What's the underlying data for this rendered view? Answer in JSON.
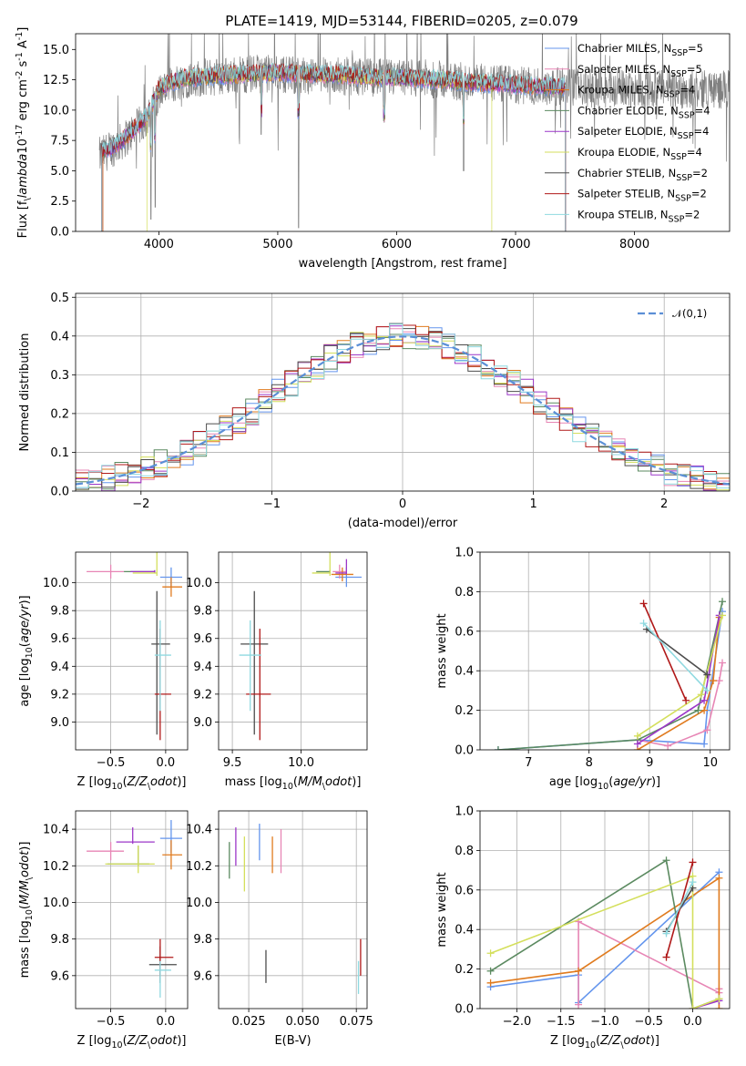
{
  "title": "PLATE=1419, MJD=53144, FIBERID=0205, z=0.079",
  "colors": {
    "chabrier_miles": "#6495ed",
    "salpeter_miles": "#e786b5",
    "kroupa_miles": "#e07b1f",
    "chabrier_elodie": "#5b8a60",
    "salpeter_elodie": "#9c36c8",
    "kroupa_elodie": "#d4df5c",
    "chabrier_stelib": "#4d4d4d",
    "salpeter_stelib": "#b01818",
    "kroupa_stelib": "#8fd9e0",
    "data": "#808080"
  },
  "chart_data": [
    {
      "id": "spectrum",
      "type": "line",
      "xlabel": "wavelength [Angstrom, rest frame]",
      "ylabel": "Flux [f$_\\lambda$10$^{-17}$ erg cm$^{-2}$ s$^{-1}$ A$^{-1}$]",
      "xlim": [
        3300,
        8800
      ],
      "ylim": [
        0,
        16.3
      ],
      "xticks": [
        4000,
        5000,
        6000,
        7000,
        8000
      ],
      "yticks": [
        0.0,
        2.5,
        5.0,
        7.5,
        10.0,
        12.5,
        15.0
      ],
      "legend_position": "right",
      "legend": [
        "Chabrier MILES, N$_{SSP}$=5",
        "Salpeter MILES, N$_{SSP}$=5",
        "Kroupa MILES, N$_{SSP}$=4",
        "Chabrier ELODIE, N$_{SSP}$=4",
        "Salpeter ELODIE, N$_{SSP}$=4",
        "Kroupa ELODIE, N$_{SSP}$=4",
        "Chabrier STELIB, N$_{SSP}$=2",
        "Salpeter STELIB, N$_{SSP}$=2",
        "Kroupa STELIB, N$_{SSP}$=2"
      ],
      "continuum_x": [
        3500,
        3600,
        3700,
        3800,
        3900,
        4000,
        4100,
        4200,
        4400,
        4600,
        4800,
        5000,
        5200,
        5400,
        5600,
        5800,
        6000,
        6200,
        6400,
        6600,
        6800,
        7000,
        7200,
        7400
      ],
      "continuum_y": [
        6.5,
        6.9,
        7.6,
        8.5,
        9.5,
        11.8,
        12.3,
        12.6,
        12.8,
        12.9,
        13.0,
        13.1,
        13.0,
        12.9,
        12.9,
        12.7,
        12.7,
        12.6,
        12.5,
        12.3,
        12.2,
        12.1,
        12.0,
        11.9
      ],
      "data_x": [
        3500,
        3600,
        3700,
        3800,
        3900,
        4000,
        4200,
        4500,
        4800,
        5000,
        5200,
        5400,
        5600,
        5800,
        6000,
        6200,
        6400,
        6600,
        6800,
        7000,
        7200,
        7400,
        7600,
        7800,
        8000,
        8200,
        8400,
        8600,
        8800
      ],
      "data_y": [
        6.2,
        6.8,
        7.5,
        8.4,
        9.3,
        11.5,
        12.5,
        12.8,
        13.0,
        13.0,
        12.9,
        12.8,
        12.8,
        12.7,
        12.6,
        12.6,
        12.5,
        12.3,
        12.2,
        12.0,
        12.0,
        11.9,
        11.8,
        11.8,
        11.8,
        11.8,
        11.7,
        11.7,
        11.7
      ],
      "absorption": [
        {
          "x": 3934,
          "y": 1.0
        },
        {
          "x": 3969,
          "y": 2.0
        },
        {
          "x": 4861,
          "y": 8.0
        },
        {
          "x": 5175,
          "y": 0.3
        },
        {
          "x": 5895,
          "y": 9.0
        },
        {
          "x": 6563,
          "y": 5.0
        }
      ]
    },
    {
      "id": "residuals",
      "type": "histogram",
      "xlabel": "(data-model)/error",
      "ylabel": "Normed distribution",
      "xlim": [
        -2.5,
        2.5
      ],
      "ylim": [
        0,
        0.51
      ],
      "xticks": [
        -2,
        -1,
        0,
        1,
        2
      ],
      "yticks": [
        0.0,
        0.1,
        0.2,
        0.3,
        0.4,
        0.5
      ],
      "bin_width": 0.1,
      "bin_start": -2.5,
      "n_bins": 50,
      "reference_label": "$\\mathcal{N}(0,1)$",
      "legend_position": "top-right"
    },
    {
      "id": "age-vs-Z",
      "type": "errorbar",
      "xlabel": "Z [log$_{10}$($Z/Z_\\odot$)]",
      "ylabel": "age  [log$_{10}$($age/yr$)]",
      "xlim": [
        -0.82,
        0.2
      ],
      "ylim": [
        8.8,
        10.22
      ],
      "xticks": [
        -0.5,
        0.0
      ],
      "yticks": [
        9.0,
        9.2,
        9.4,
        9.6,
        9.8,
        10.0
      ],
      "points": [
        {
          "s": "chabrier_miles",
          "x": 0.05,
          "y": 10.04,
          "xe": [
            0.1,
            0.1
          ],
          "ye": [
            0.07,
            0.07
          ]
        },
        {
          "s": "salpeter_miles",
          "x": -0.5,
          "y": 10.08,
          "xe": [
            0.22,
            0.12
          ],
          "ye": [
            0.05,
            0.05
          ]
        },
        {
          "s": "kroupa_miles",
          "x": 0.05,
          "y": 9.97,
          "xe": [
            0.08,
            0.1
          ],
          "ye": [
            0.07,
            0.07
          ]
        },
        {
          "s": "chabrier_elodie",
          "x": -0.1,
          "y": 10.08,
          "xe": [
            0.28,
            0.0
          ],
          "ye": [
            0.01,
            0.01
          ]
        },
        {
          "s": "salpeter_elodie",
          "x": -0.1,
          "y": 10.08,
          "xe": [
            0.22,
            0.0
          ],
          "ye": [
            0.01,
            0.01
          ]
        },
        {
          "s": "kroupa_elodie",
          "x": -0.08,
          "y": 10.07,
          "xe": [
            0.22,
            0.0
          ],
          "ye": [
            0.02,
            0.25
          ]
        },
        {
          "s": "chabrier_stelib",
          "x": -0.08,
          "y": 9.56,
          "xe": [
            0.05,
            0.12
          ],
          "ye": [
            0.65,
            0.38
          ]
        },
        {
          "s": "salpeter_stelib",
          "x": -0.05,
          "y": 9.2,
          "xe": [
            0.05,
            0.1
          ],
          "ye": [
            0.33,
            0.47
          ]
        },
        {
          "s": "kroupa_stelib",
          "x": -0.05,
          "y": 9.48,
          "xe": [
            0.05,
            0.1
          ],
          "ye": [
            0.4,
            0.25
          ]
        }
      ]
    },
    {
      "id": "age-vs-mass",
      "type": "errorbar",
      "xlabel": "mass [log$_{10}$($M/M_\\odot$)]",
      "ylabel": "",
      "xlim": [
        9.4,
        10.48
      ],
      "ylim": [
        8.8,
        10.22
      ],
      "xticks": [
        9.5,
        10.0
      ],
      "yticks": [
        9.0,
        9.2,
        9.4,
        9.6,
        9.8,
        10.0
      ],
      "points": [
        {
          "s": "chabrier_miles",
          "x": 10.33,
          "y": 10.04,
          "xe": [
            0.08,
            0.11
          ],
          "ye": [
            0.07,
            0.07
          ]
        },
        {
          "s": "salpeter_miles",
          "x": 10.28,
          "y": 10.08,
          "xe": [
            0.05,
            0.05
          ],
          "ye": [
            0.05,
            0.05
          ]
        },
        {
          "s": "kroupa_miles",
          "x": 10.3,
          "y": 10.06,
          "xe": [
            0.08,
            0.08
          ],
          "ye": [
            0.05,
            0.05
          ]
        },
        {
          "s": "chabrier_elodie",
          "x": 10.21,
          "y": 10.08,
          "xe": [
            0.1,
            0.0
          ],
          "ye": [
            0.01,
            0.01
          ]
        },
        {
          "s": "salpeter_elodie",
          "x": 10.33,
          "y": 10.07,
          "xe": [
            0.08,
            0.0
          ],
          "ye": [
            0.01,
            0.1
          ]
        },
        {
          "s": "kroupa_elodie",
          "x": 10.21,
          "y": 10.07,
          "xe": [
            0.13,
            0.0
          ],
          "ye": [
            0.02,
            0.25
          ]
        },
        {
          "s": "chabrier_stelib",
          "x": 9.66,
          "y": 9.56,
          "xe": [
            0.1,
            0.1
          ],
          "ye": [
            0.65,
            0.38
          ]
        },
        {
          "s": "salpeter_stelib",
          "x": 9.7,
          "y": 9.2,
          "xe": [
            0.1,
            0.08
          ],
          "ye": [
            0.33,
            0.47
          ]
        },
        {
          "s": "kroupa_stelib",
          "x": 9.63,
          "y": 9.48,
          "xe": [
            0.08,
            0.08
          ],
          "ye": [
            0.4,
            0.25
          ]
        }
      ]
    },
    {
      "id": "massweight-vs-age",
      "type": "line",
      "xlabel": "age  [log$_{10}$($age/yr$)]",
      "ylabel": "mass weight",
      "xlim": [
        6.2,
        10.32
      ],
      "ylim": [
        0.0,
        1.0
      ],
      "xticks": [
        7,
        8,
        9,
        10
      ],
      "yticks": [
        0.0,
        0.2,
        0.4,
        0.6,
        0.8,
        1.0
      ],
      "series": [
        {
          "s": "chabrier_miles",
          "x": [
            6.5,
            8.8,
            9.9,
            9.95,
            10.2
          ],
          "y": [
            0.0,
            0.05,
            0.03,
            0.2,
            0.7
          ]
        },
        {
          "s": "salpeter_miles",
          "x": [
            8.8,
            9.3,
            9.95,
            10.15,
            10.2
          ],
          "y": [
            0.05,
            0.02,
            0.1,
            0.35,
            0.44
          ]
        },
        {
          "s": "kroupa_miles",
          "x": [
            8.8,
            9.9,
            10.05,
            10.15
          ],
          "y": [
            0.0,
            0.2,
            0.35,
            0.67
          ]
        },
        {
          "s": "chabrier_elodie",
          "x": [
            6.5,
            8.8,
            9.8,
            10.2
          ],
          "y": [
            0.0,
            0.05,
            0.2,
            0.75
          ]
        },
        {
          "s": "salpeter_elodie",
          "x": [
            8.8,
            9.9,
            10.15
          ],
          "y": [
            0.03,
            0.25,
            0.68
          ]
        },
        {
          "s": "kroupa_elodie",
          "x": [
            8.8,
            9.85,
            10.2
          ],
          "y": [
            0.07,
            0.28,
            0.68
          ]
        },
        {
          "s": "chabrier_stelib",
          "x": [
            8.95,
            9.95
          ],
          "y": [
            0.61,
            0.38
          ]
        },
        {
          "s": "salpeter_stelib",
          "x": [
            8.9,
            9.6
          ],
          "y": [
            0.74,
            0.25
          ]
        },
        {
          "s": "kroupa_stelib",
          "x": [
            8.9,
            9.95
          ],
          "y": [
            0.64,
            0.3
          ]
        }
      ]
    },
    {
      "id": "mass-vs-Z",
      "type": "errorbar",
      "xlabel": "Z [log$_{10}$($Z/Z_\\odot$)]",
      "ylabel": "mass [log$_{10}$($M/M_\\odot$)]",
      "xlim": [
        -0.82,
        0.2
      ],
      "ylim": [
        9.42,
        10.5
      ],
      "xticks": [
        -0.5,
        0.0
      ],
      "yticks": [
        9.6,
        9.8,
        10.0,
        10.2,
        10.4
      ],
      "points": [
        {
          "s": "chabrier_miles",
          "x": 0.05,
          "y": 10.35,
          "xe": [
            0.1,
            0.1
          ],
          "ye": [
            0.08,
            0.1
          ]
        },
        {
          "s": "salpeter_miles",
          "x": -0.5,
          "y": 10.28,
          "xe": [
            0.22,
            0.12
          ],
          "ye": [
            0.05,
            0.05
          ]
        },
        {
          "s": "kroupa_miles",
          "x": 0.05,
          "y": 10.26,
          "xe": [
            0.08,
            0.1
          ],
          "ye": [
            0.08,
            0.08
          ]
        },
        {
          "s": "chabrier_elodie",
          "x": -0.25,
          "y": 10.21,
          "xe": [
            0.28,
            0.1
          ],
          "ye": [
            0.01,
            0.1
          ]
        },
        {
          "s": "salpeter_elodie",
          "x": -0.3,
          "y": 10.33,
          "xe": [
            0.15,
            0.2
          ],
          "ye": [
            0.01,
            0.08
          ]
        },
        {
          "s": "kroupa_elodie",
          "x": -0.25,
          "y": 10.21,
          "xe": [
            0.3,
            0.15
          ],
          "ye": [
            0.05,
            0.1
          ]
        },
        {
          "s": "chabrier_stelib",
          "x": -0.05,
          "y": 9.66,
          "xe": [
            0.1,
            0.15
          ],
          "ye": [
            0.1,
            0.1
          ]
        },
        {
          "s": "salpeter_stelib",
          "x": -0.05,
          "y": 9.7,
          "xe": [
            0.05,
            0.12
          ],
          "ye": [
            0.1,
            0.1
          ]
        },
        {
          "s": "kroupa_stelib",
          "x": -0.05,
          "y": 9.63,
          "xe": [
            0.05,
            0.1
          ],
          "ye": [
            0.15,
            0.05
          ]
        }
      ]
    },
    {
      "id": "mass-vs-ebv",
      "type": "errorbar",
      "xlabel": "E(B-V)",
      "ylabel": "",
      "xlim": [
        0.011,
        0.08
      ],
      "ylim": [
        9.42,
        10.5
      ],
      "xticks": [
        0.025,
        0.05,
        0.075
      ],
      "yticks": [
        9.6,
        9.8,
        10.0,
        10.2,
        10.4
      ],
      "points": [
        {
          "s": "chabrier_miles",
          "x": 0.03,
          "y": 10.33,
          "xe": [
            0,
            0
          ],
          "ye": [
            0.1,
            0.1
          ]
        },
        {
          "s": "salpeter_miles",
          "x": 0.04,
          "y": 10.28,
          "xe": [
            0,
            0
          ],
          "ye": [
            0.12,
            0.12
          ]
        },
        {
          "s": "kroupa_miles",
          "x": 0.036,
          "y": 10.26,
          "xe": [
            0,
            0
          ],
          "ye": [
            0.1,
            0.1
          ]
        },
        {
          "s": "chabrier_elodie",
          "x": 0.016,
          "y": 10.21,
          "xe": [
            0,
            0
          ],
          "ye": [
            0.08,
            0.12
          ]
        },
        {
          "s": "salpeter_elodie",
          "x": 0.019,
          "y": 10.33,
          "xe": [
            0,
            0
          ],
          "ye": [
            0.13,
            0.08
          ]
        },
        {
          "s": "kroupa_elodie",
          "x": 0.023,
          "y": 10.21,
          "xe": [
            0,
            0
          ],
          "ye": [
            0.15,
            0.15
          ]
        },
        {
          "s": "chabrier_stelib",
          "x": 0.033,
          "y": 9.66,
          "xe": [
            0,
            0
          ],
          "ye": [
            0.1,
            0.08
          ]
        },
        {
          "s": "salpeter_stelib",
          "x": 0.077,
          "y": 9.7,
          "xe": [
            0,
            0
          ],
          "ye": [
            0.1,
            0.1
          ]
        },
        {
          "s": "kroupa_stelib",
          "x": 0.076,
          "y": 9.6,
          "xe": [
            0,
            0
          ],
          "ye": [
            0.1,
            0.08
          ]
        }
      ]
    },
    {
      "id": "massweight-vs-Z",
      "type": "line",
      "xlabel": "Z [log$_{10}$($Z/Z_\\odot$)]",
      "ylabel": "mass weight",
      "xlim": [
        -2.42,
        0.42
      ],
      "ylim": [
        0.0,
        1.0
      ],
      "xticks": [
        -2.0,
        -1.5,
        -1.0,
        -0.5,
        0.0
      ],
      "yticks": [
        0.0,
        0.2,
        0.4,
        0.6,
        0.8,
        1.0
      ],
      "series": [
        {
          "s": "chabrier_miles",
          "x": [
            -2.3,
            -1.3,
            -1.3,
            0.3
          ],
          "y": [
            0.11,
            0.17,
            0.03,
            0.69
          ]
        },
        {
          "s": "salpeter_miles",
          "x": [
            -1.3,
            -1.3,
            0.3,
            0.3
          ],
          "y": [
            0.02,
            0.44,
            0.08,
            0.1
          ]
        },
        {
          "s": "kroupa_miles",
          "x": [
            -2.3,
            -1.3,
            0.3,
            0.3
          ],
          "y": [
            0.13,
            0.19,
            0.66,
            0.0
          ]
        },
        {
          "s": "chabrier_elodie",
          "x": [
            -2.3,
            -0.3,
            0.0,
            0.3
          ],
          "y": [
            0.19,
            0.75,
            0.0,
            0.05
          ]
        },
        {
          "s": "salpeter_elodie",
          "x": [
            0.0,
            0.3
          ],
          "y": [
            0.0,
            0.04
          ]
        },
        {
          "s": "kroupa_elodie",
          "x": [
            -2.3,
            0.0,
            0.0,
            0.3
          ],
          "y": [
            0.28,
            0.67,
            0.0,
            0.05
          ]
        },
        {
          "s": "chabrier_stelib",
          "x": [
            -0.3,
            0.0
          ],
          "y": [
            0.39,
            0.61
          ]
        },
        {
          "s": "salpeter_stelib",
          "x": [
            -0.3,
            0.0
          ],
          "y": [
            0.26,
            0.74
          ]
        },
        {
          "s": "kroupa_stelib",
          "x": [
            -0.3,
            0.0
          ],
          "y": [
            0.38,
            0.64
          ]
        }
      ]
    }
  ]
}
